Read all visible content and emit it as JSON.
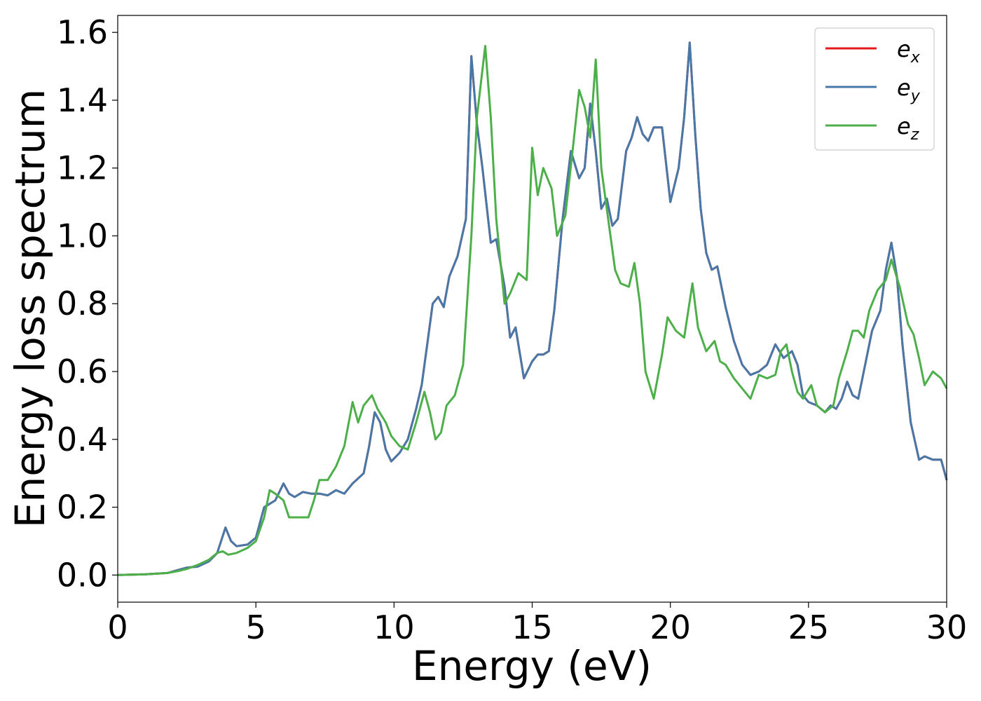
{
  "chart_data": {
    "type": "line",
    "title": "",
    "xlabel": "Energy (eV)",
    "ylabel": "Energy loss spectrum",
    "xlim": [
      0,
      30
    ],
    "ylim": [
      -0.08,
      1.65
    ],
    "xticks": [
      0,
      5,
      10,
      15,
      20,
      25,
      30
    ],
    "xtick_labels": [
      "0",
      "5",
      "10",
      "15",
      "20",
      "25",
      "30"
    ],
    "yticks": [
      0.0,
      0.2,
      0.4,
      0.6,
      0.8,
      1.0,
      1.2,
      1.4,
      1.6
    ],
    "ytick_labels": [
      "0.0",
      "0.2",
      "0.4",
      "0.6",
      "0.8",
      "1.0",
      "1.2",
      "1.4",
      "1.6"
    ],
    "grid": false,
    "legend_position": "top-right",
    "series": [
      {
        "name": "e_x",
        "legend_base": "e",
        "legend_sub": "x",
        "color": "#e41a1c",
        "x": [
          0,
          1,
          1.8,
          2.2,
          2.5,
          2.9,
          3.3,
          3.6,
          3.9,
          4.1,
          4.3,
          4.7,
          5.0,
          5.3,
          5.5,
          5.7,
          6.0,
          6.2,
          6.4,
          6.7,
          7.0,
          7.3,
          7.6,
          7.9,
          8.2,
          8.5,
          8.9,
          9.1,
          9.3,
          9.5,
          9.7,
          9.9,
          10.2,
          10.5,
          10.8,
          11.0,
          11.2,
          11.4,
          11.6,
          11.8,
          12.0,
          12.3,
          12.6,
          12.8,
          13.0,
          13.2,
          13.5,
          13.7,
          14.0,
          14.2,
          14.4,
          14.7,
          15.0,
          15.2,
          15.4,
          15.6,
          15.8,
          16.1,
          16.4,
          16.7,
          16.9,
          17.1,
          17.3,
          17.5,
          17.7,
          17.9,
          18.1,
          18.4,
          18.6,
          18.8,
          19.0,
          19.2,
          19.4,
          19.7,
          20.0,
          20.3,
          20.5,
          20.7,
          20.9,
          21.1,
          21.3,
          21.5,
          21.7,
          22.0,
          22.3,
          22.6,
          22.9,
          23.2,
          23.5,
          23.8,
          24.1,
          24.4,
          24.6,
          24.8,
          25.0,
          25.3,
          25.6,
          25.8,
          26.0,
          26.2,
          26.4,
          26.6,
          26.8,
          27.0,
          27.3,
          27.6,
          27.8,
          28.0,
          28.2,
          28.4,
          28.7,
          29.0,
          29.2,
          29.5,
          29.8,
          30.0
        ],
        "y": [
          0.0,
          0.002,
          0.006,
          0.015,
          0.022,
          0.025,
          0.04,
          0.065,
          0.14,
          0.1,
          0.085,
          0.09,
          0.11,
          0.2,
          0.21,
          0.22,
          0.27,
          0.24,
          0.23,
          0.245,
          0.24,
          0.24,
          0.235,
          0.25,
          0.24,
          0.27,
          0.3,
          0.38,
          0.48,
          0.45,
          0.37,
          0.335,
          0.36,
          0.4,
          0.49,
          0.56,
          0.68,
          0.8,
          0.82,
          0.79,
          0.88,
          0.94,
          1.05,
          1.53,
          1.33,
          1.2,
          0.98,
          0.99,
          0.85,
          0.7,
          0.73,
          0.58,
          0.63,
          0.65,
          0.65,
          0.66,
          0.78,
          1.05,
          1.25,
          1.17,
          1.2,
          1.39,
          1.25,
          1.08,
          1.11,
          1.03,
          1.05,
          1.25,
          1.29,
          1.35,
          1.3,
          1.28,
          1.32,
          1.32,
          1.1,
          1.2,
          1.35,
          1.57,
          1.3,
          1.08,
          0.95,
          0.9,
          0.91,
          0.79,
          0.69,
          0.62,
          0.59,
          0.6,
          0.62,
          0.68,
          0.64,
          0.66,
          0.62,
          0.53,
          0.51,
          0.5,
          0.48,
          0.5,
          0.49,
          0.52,
          0.57,
          0.53,
          0.52,
          0.6,
          0.72,
          0.78,
          0.9,
          0.98,
          0.88,
          0.68,
          0.45,
          0.34,
          0.35,
          0.34,
          0.34,
          0.28
        ]
      },
      {
        "name": "e_y",
        "legend_base": "e",
        "legend_sub": "y",
        "color": "#4878a8",
        "x": [
          0,
          1,
          1.8,
          2.2,
          2.5,
          2.9,
          3.3,
          3.6,
          3.9,
          4.1,
          4.3,
          4.7,
          5.0,
          5.3,
          5.5,
          5.7,
          6.0,
          6.2,
          6.4,
          6.7,
          7.0,
          7.3,
          7.6,
          7.9,
          8.2,
          8.5,
          8.9,
          9.1,
          9.3,
          9.5,
          9.7,
          9.9,
          10.2,
          10.5,
          10.8,
          11.0,
          11.2,
          11.4,
          11.6,
          11.8,
          12.0,
          12.3,
          12.6,
          12.8,
          13.0,
          13.2,
          13.5,
          13.7,
          14.0,
          14.2,
          14.4,
          14.7,
          15.0,
          15.2,
          15.4,
          15.6,
          15.8,
          16.1,
          16.4,
          16.7,
          16.9,
          17.1,
          17.3,
          17.5,
          17.7,
          17.9,
          18.1,
          18.4,
          18.6,
          18.8,
          19.0,
          19.2,
          19.4,
          19.7,
          20.0,
          20.3,
          20.5,
          20.7,
          20.9,
          21.1,
          21.3,
          21.5,
          21.7,
          22.0,
          22.3,
          22.6,
          22.9,
          23.2,
          23.5,
          23.8,
          24.1,
          24.4,
          24.6,
          24.8,
          25.0,
          25.3,
          25.6,
          25.8,
          26.0,
          26.2,
          26.4,
          26.6,
          26.8,
          27.0,
          27.3,
          27.6,
          27.8,
          28.0,
          28.2,
          28.4,
          28.7,
          29.0,
          29.2,
          29.5,
          29.8,
          30.0
        ],
        "y": [
          0.0,
          0.002,
          0.006,
          0.015,
          0.022,
          0.025,
          0.04,
          0.065,
          0.14,
          0.1,
          0.085,
          0.09,
          0.11,
          0.2,
          0.21,
          0.22,
          0.27,
          0.24,
          0.23,
          0.245,
          0.24,
          0.24,
          0.235,
          0.25,
          0.24,
          0.27,
          0.3,
          0.38,
          0.48,
          0.45,
          0.37,
          0.335,
          0.36,
          0.4,
          0.49,
          0.56,
          0.68,
          0.8,
          0.82,
          0.79,
          0.88,
          0.94,
          1.05,
          1.53,
          1.33,
          1.2,
          0.98,
          0.99,
          0.85,
          0.7,
          0.73,
          0.58,
          0.63,
          0.65,
          0.65,
          0.66,
          0.78,
          1.05,
          1.25,
          1.17,
          1.2,
          1.39,
          1.25,
          1.08,
          1.11,
          1.03,
          1.05,
          1.25,
          1.29,
          1.35,
          1.3,
          1.28,
          1.32,
          1.32,
          1.1,
          1.2,
          1.35,
          1.57,
          1.3,
          1.08,
          0.95,
          0.9,
          0.91,
          0.79,
          0.69,
          0.62,
          0.59,
          0.6,
          0.62,
          0.68,
          0.64,
          0.66,
          0.62,
          0.53,
          0.51,
          0.5,
          0.48,
          0.5,
          0.49,
          0.52,
          0.57,
          0.53,
          0.52,
          0.6,
          0.72,
          0.78,
          0.9,
          0.98,
          0.88,
          0.68,
          0.45,
          0.34,
          0.35,
          0.34,
          0.34,
          0.28
        ]
      },
      {
        "name": "e_z",
        "legend_base": "e",
        "legend_sub": "z",
        "color": "#4daf4a",
        "x": [
          0,
          1,
          1.8,
          2.2,
          2.5,
          2.9,
          3.3,
          3.6,
          3.8,
          4.0,
          4.3,
          4.7,
          5.0,
          5.3,
          5.5,
          5.7,
          6.0,
          6.2,
          6.5,
          6.9,
          7.1,
          7.3,
          7.6,
          7.9,
          8.2,
          8.5,
          8.7,
          8.9,
          9.2,
          9.4,
          9.7,
          9.9,
          10.2,
          10.5,
          10.8,
          11.1,
          11.3,
          11.5,
          11.7,
          11.9,
          12.2,
          12.5,
          12.8,
          13.0,
          13.3,
          13.5,
          13.7,
          14.0,
          14.2,
          14.5,
          14.8,
          15.0,
          15.2,
          15.4,
          15.7,
          15.9,
          16.2,
          16.5,
          16.7,
          16.9,
          17.1,
          17.3,
          17.5,
          17.8,
          18.0,
          18.2,
          18.5,
          18.7,
          18.9,
          19.1,
          19.4,
          19.7,
          19.9,
          20.2,
          20.5,
          20.8,
          21.0,
          21.3,
          21.6,
          21.8,
          22.0,
          22.3,
          22.6,
          22.9,
          23.2,
          23.5,
          23.8,
          24.0,
          24.2,
          24.4,
          24.6,
          24.8,
          25.1,
          25.3,
          25.6,
          25.9,
          26.1,
          26.4,
          26.6,
          26.8,
          27.0,
          27.2,
          27.5,
          27.8,
          28.0,
          28.3,
          28.6,
          28.8,
          29.0,
          29.2,
          29.5,
          29.8,
          30.0
        ],
        "y": [
          0.0,
          0.002,
          0.006,
          0.012,
          0.018,
          0.03,
          0.045,
          0.065,
          0.07,
          0.06,
          0.065,
          0.08,
          0.1,
          0.17,
          0.25,
          0.24,
          0.22,
          0.17,
          0.17,
          0.17,
          0.22,
          0.28,
          0.28,
          0.32,
          0.38,
          0.51,
          0.45,
          0.5,
          0.53,
          0.49,
          0.45,
          0.41,
          0.38,
          0.37,
          0.45,
          0.54,
          0.48,
          0.4,
          0.42,
          0.5,
          0.53,
          0.62,
          1.0,
          1.35,
          1.56,
          1.35,
          1.05,
          0.8,
          0.83,
          0.89,
          0.87,
          1.26,
          1.12,
          1.2,
          1.14,
          1.0,
          1.06,
          1.28,
          1.43,
          1.38,
          1.29,
          1.52,
          1.2,
          1.02,
          0.9,
          0.86,
          0.85,
          0.92,
          0.8,
          0.6,
          0.52,
          0.65,
          0.76,
          0.72,
          0.7,
          0.86,
          0.73,
          0.66,
          0.69,
          0.63,
          0.62,
          0.58,
          0.55,
          0.52,
          0.59,
          0.58,
          0.59,
          0.66,
          0.68,
          0.6,
          0.54,
          0.52,
          0.56,
          0.5,
          0.48,
          0.5,
          0.58,
          0.66,
          0.72,
          0.72,
          0.7,
          0.78,
          0.84,
          0.87,
          0.93,
          0.85,
          0.74,
          0.71,
          0.64,
          0.56,
          0.6,
          0.58,
          0.55
        ]
      }
    ]
  }
}
